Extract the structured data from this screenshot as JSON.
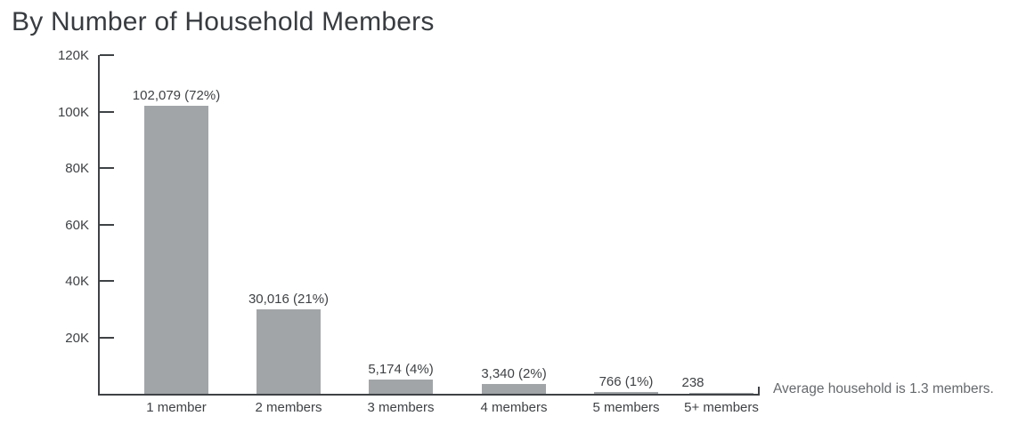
{
  "chart_data": {
    "type": "bar",
    "title": "By Number of Household Members",
    "categories": [
      "1 member",
      "2 members",
      "3 members",
      "4 members",
      "5 members",
      "5+ members"
    ],
    "values": [
      102079,
      30016,
      5174,
      3340,
      766,
      238
    ],
    "bar_labels": [
      "102,079 (72%)",
      "30,016 (21%)",
      "5,174 (4%)",
      "3,340 (2%)",
      "766 (1%)",
      "238"
    ],
    "xlabel": "",
    "ylabel": "",
    "ylim": [
      0,
      120000
    ],
    "yticks": [
      {
        "label": "20K",
        "value": 20000
      },
      {
        "label": "40K",
        "value": 40000
      },
      {
        "label": "60K",
        "value": 60000
      },
      {
        "label": "80K",
        "value": 80000
      },
      {
        "label": "100K",
        "value": 100000
      },
      {
        "label": "120K",
        "value": 120000
      }
    ],
    "grid": false,
    "legend_position": "none",
    "annotation": "Average household is 1.3 members.",
    "colors": {
      "bar": "#a2a5a8",
      "axis": "#3f4245",
      "tick_text": "#3f4245",
      "title_text": "#383c40",
      "annotation_text": "#65696c",
      "background": "#ffffff"
    }
  }
}
